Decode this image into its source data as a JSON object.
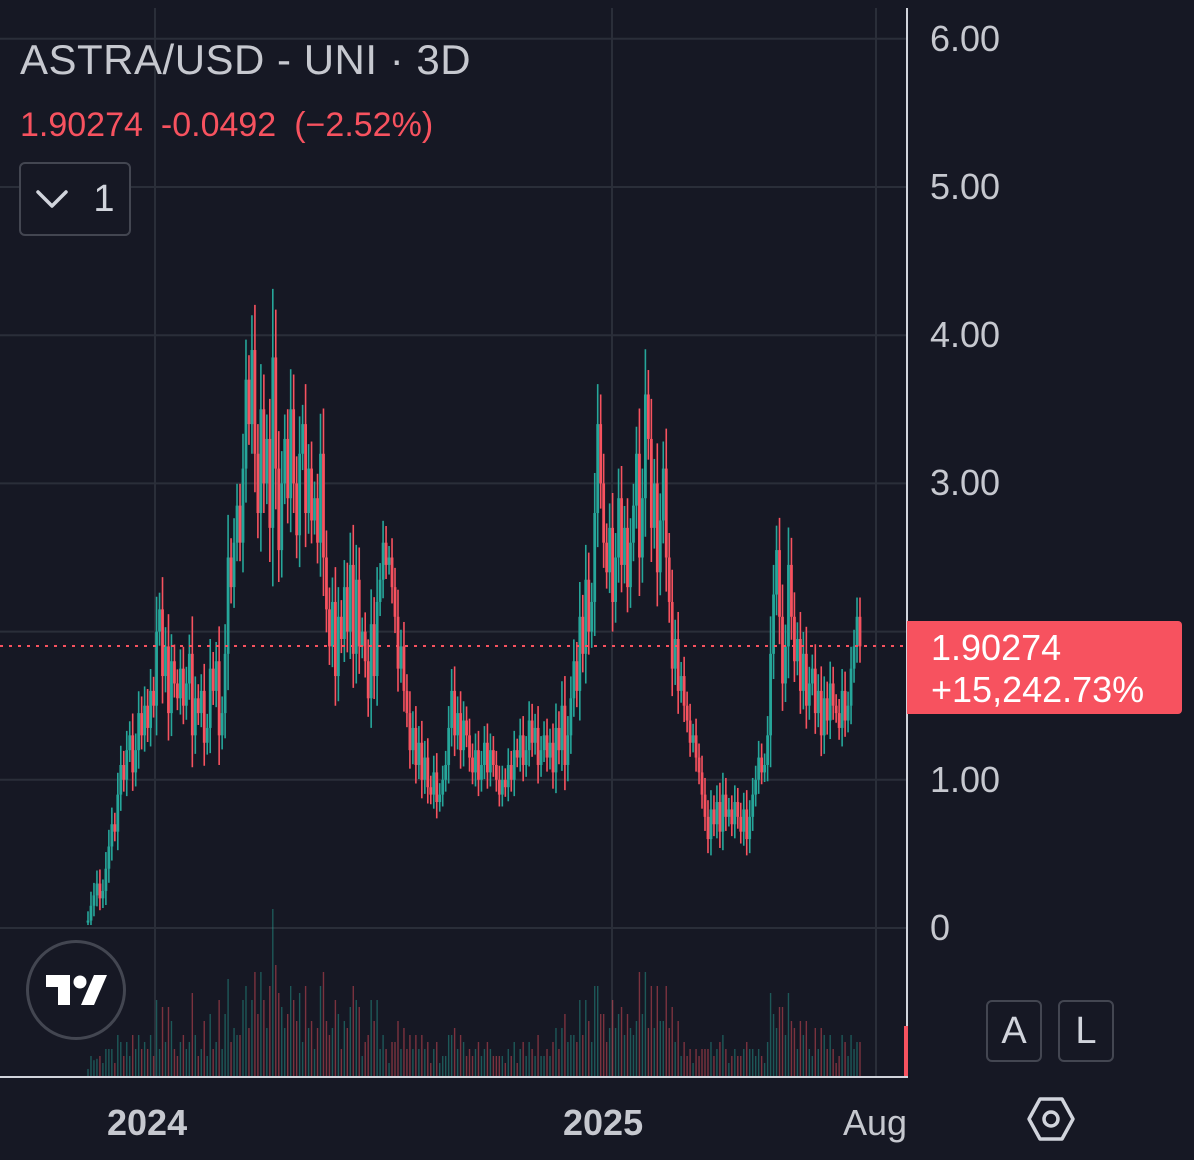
{
  "header": {
    "title": "ASTRA/USD - UNI · 3D",
    "price": "1.90274",
    "change": "-0.0492",
    "change_pct": "(−2.52%)",
    "indicators_count": "1"
  },
  "price_label": {
    "price": "1.90274",
    "percent": "+15,242.73%"
  },
  "corner_buttons": {
    "auto": "A",
    "log": "L"
  },
  "colors": {
    "background": "#161824",
    "up": "#26a69a",
    "down": "#f7525f",
    "grid": "#2a2e39",
    "axis_line": "#787b86"
  },
  "icons": {
    "logo": "tradingview-logo-icon",
    "indicators_toggle": "chevron-down-icon",
    "settings": "hexagon-settings-icon"
  },
  "chart_data": {
    "type": "candlestick",
    "title": "ASTRA/USD - UNI · 3D",
    "y_ticks": [
      "6.00",
      "5.00",
      "4.00",
      "3.00",
      "1.00",
      "0"
    ],
    "x_ticks": [
      "2024",
      "2025",
      "Aug"
    ],
    "ylim": [
      -1.0,
      6.2
    ],
    "last_price": 1.90274,
    "legend": "none",
    "grid": true,
    "series": [
      {
        "name": "price",
        "values": [
          0.05,
          0.15,
          0.22,
          0.3,
          0.2,
          0.25,
          0.4,
          0.55,
          0.7,
          0.65,
          0.9,
          1.1,
          1.0,
          1.2,
          1.3,
          1.05,
          1.2,
          1.45,
          1.3,
          1.5,
          1.35,
          1.6,
          1.5,
          2.0,
          2.15,
          1.7,
          1.9,
          1.45,
          1.8,
          1.65,
          1.55,
          1.75,
          1.5,
          1.65,
          1.85,
          1.3,
          1.55,
          1.45,
          1.6,
          1.25,
          1.35,
          1.75,
          1.6,
          1.8,
          1.3,
          1.45,
          1.85,
          2.5,
          2.3,
          2.6,
          2.85,
          2.6,
          3.1,
          3.7,
          3.4,
          3.9,
          3.2,
          2.8,
          3.5,
          3.0,
          3.3,
          2.7,
          3.85,
          3.1,
          2.55,
          3.0,
          3.3,
          2.9,
          3.5,
          3.0,
          2.65,
          3.2,
          3.4,
          2.8,
          3.1,
          2.75,
          2.9,
          2.6,
          3.2,
          2.5,
          2.15,
          1.9,
          2.2,
          1.7,
          2.1,
          1.95,
          2.3,
          2.0,
          2.45,
          1.85,
          2.35,
          1.9,
          2.0,
          1.8,
          1.55,
          2.05,
          1.7,
          2.2,
          2.35,
          2.6,
          2.45,
          2.5,
          2.3,
          2.1,
          1.75,
          1.9,
          1.6,
          1.45,
          1.2,
          1.35,
          1.1,
          1.25,
          1.0,
          1.15,
          0.95,
          0.9,
          1.05,
          0.85,
          0.9,
          1.0,
          1.1,
          1.35,
          1.6,
          1.3,
          1.45,
          1.2,
          1.4,
          1.3,
          1.15,
          1.05,
          1.2,
          1.0,
          1.1,
          1.25,
          1.05,
          1.2,
          1.1,
          1.0,
          0.9,
          1.0,
          0.95,
          1.1,
          1.0,
          1.2,
          1.15,
          1.3,
          1.1,
          1.2,
          1.4,
          1.25,
          1.35,
          1.1,
          1.2,
          1.3,
          1.15,
          1.25,
          1.05,
          1.35,
          1.2,
          1.5,
          1.1,
          1.3,
          1.55,
          1.8,
          1.6,
          2.1,
          1.85,
          2.35,
          2.0,
          2.2,
          2.8,
          3.4,
          3.0,
          2.6,
          2.4,
          2.7,
          2.2,
          2.5,
          2.9,
          2.45,
          2.7,
          2.3,
          2.6,
          2.85,
          3.2,
          2.5,
          2.9,
          3.6,
          3.3,
          2.7,
          3.0,
          2.4,
          2.75,
          3.1,
          2.5,
          2.2,
          1.75,
          1.95,
          1.6,
          1.7,
          1.5,
          1.4,
          1.25,
          1.3,
          1.15,
          1.05,
          0.9,
          0.75,
          0.6,
          0.8,
          0.7,
          0.85,
          0.65,
          0.9,
          0.75,
          0.8,
          0.7,
          0.85,
          0.75,
          0.65,
          0.8,
          0.6,
          0.75,
          0.9,
          1.0,
          1.15,
          1.05,
          1.1,
          1.3,
          1.85,
          2.25,
          2.55,
          2.1,
          1.65,
          1.9,
          2.45,
          2.1,
          1.8,
          1.95,
          1.6,
          1.85,
          1.5,
          1.65,
          1.75,
          1.45,
          1.6,
          1.3,
          1.55,
          1.4,
          1.65,
          1.5,
          1.45,
          1.35,
          1.6,
          1.4,
          1.5,
          1.75,
          1.9,
          2.1,
          1.9
        ]
      }
    ]
  }
}
